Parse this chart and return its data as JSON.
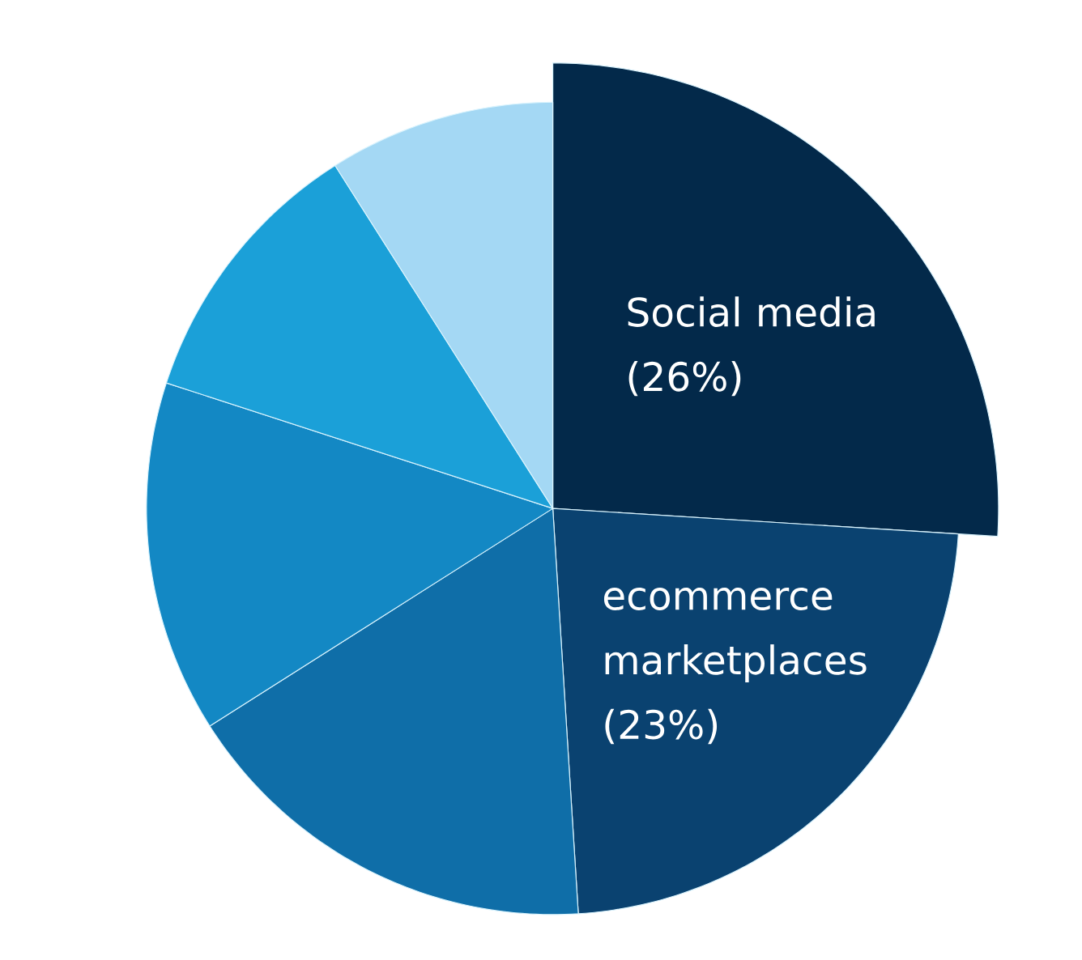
{
  "chart_data": {
    "type": "pie",
    "categories": [
      "Social media",
      "ecommerce marketplaces",
      null,
      null,
      null,
      null
    ],
    "values": [
      26,
      23,
      17,
      14,
      11,
      9
    ],
    "colors": [
      "#03294a",
      "#0a4270",
      "#0f6ea8",
      "#1388c4",
      "#1ba0d8",
      "#a4d8f4"
    ],
    "value_labels": [
      "(26%)",
      "(23%)",
      null,
      null,
      null,
      null
    ]
  }
}
